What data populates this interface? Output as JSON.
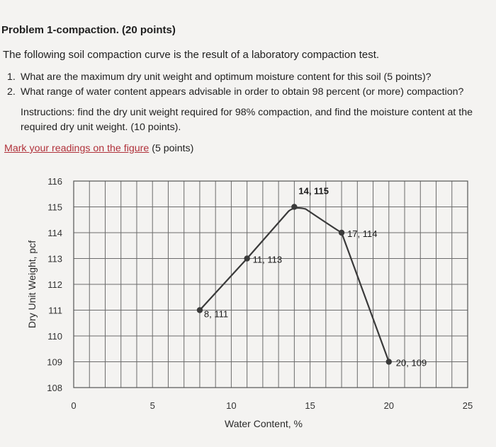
{
  "problem": {
    "heading": "Problem 1-compaction. (20 points)",
    "intro": "The following soil compaction curve is the result of a laboratory compaction test.",
    "questions": [
      {
        "number": "1.",
        "text": "What are the maximum dry unit weight and optimum moisture content for this soil (5 points)?"
      },
      {
        "number": "2.",
        "text": "What range of water content appears advisable in order to obtain 98 percent (or more) compaction?"
      }
    ],
    "instructions": "Instructions: find the dry unit weight required for 98% compaction, and find the moisture content at the required dry unit weight. (10 points).",
    "mark_link": "Mark your readings on the figure",
    "mark_points": "(5 points)"
  },
  "colors": {
    "curve": "#3a3a3a",
    "grid": "#6b6b6b",
    "link": "#b0313a"
  },
  "chart_data": {
    "type": "line",
    "xlabel": "Water Content, %",
    "ylabel": "Dry Unit Weight, pcf",
    "xlim": [
      0,
      25
    ],
    "ylim": [
      108,
      116
    ],
    "x_ticks": [
      "0",
      "5",
      "10",
      "15",
      "20",
      "25"
    ],
    "y_ticks": [
      "116",
      "115",
      "114",
      "113",
      "112",
      "111",
      "110",
      "109",
      "108"
    ],
    "grid": true,
    "series": [
      {
        "points": [
          {
            "x": 8,
            "y": 111,
            "label": "8, 111"
          },
          {
            "x": 11,
            "y": 113,
            "label": "11, 113"
          },
          {
            "x": 14,
            "y": 115,
            "label": "14, 115"
          },
          {
            "x": 17,
            "y": 114,
            "label": "17, 114"
          },
          {
            "x": 20,
            "y": 109,
            "label": "20, 109"
          }
        ]
      }
    ]
  }
}
